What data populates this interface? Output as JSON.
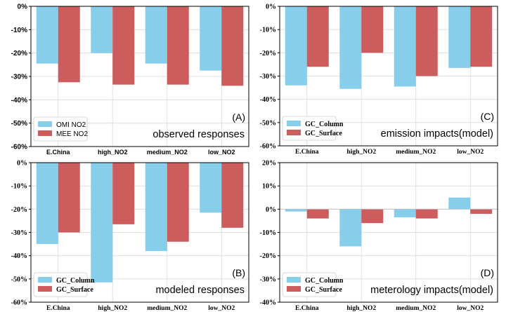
{
  "colors": {
    "blue": "#87ceeb",
    "red": "#cd5c5c",
    "grid": "#d9d9d9",
    "axis": "#000000"
  },
  "chart_data": [
    {
      "id": "A",
      "type": "bar",
      "panel_label": "(A)",
      "title": "observed responses",
      "categories": [
        "E.China",
        "high_NO2",
        "medium_NO2",
        "low_NO2"
      ],
      "series": [
        {
          "name": "OMI NO2",
          "values": [
            -24.5,
            -20,
            -24.5,
            -27.5
          ]
        },
        {
          "name": "MEE NO2",
          "values": [
            -32.5,
            -33.5,
            -33.5,
            -34
          ]
        }
      ],
      "ylim": [
        -60,
        0
      ],
      "yticks": [
        "0%",
        "-10%",
        "-20%",
        "-30%",
        "-40%",
        "-50%",
        "-60%"
      ],
      "grid": true,
      "legend": "bottom-left"
    },
    {
      "id": "C",
      "type": "bar",
      "panel_label": "(C)",
      "title": "emission impacts(model)",
      "categories": [
        "E.China",
        "high_NO2",
        "medium_NO2",
        "low_NO2"
      ],
      "series": [
        {
          "name": "GC_Column",
          "values": [
            -34,
            -35.5,
            -34.5,
            -26.5
          ]
        },
        {
          "name": "GC_Surface",
          "values": [
            -26,
            -20,
            -30,
            -26
          ]
        }
      ],
      "ylim": [
        -60,
        0
      ],
      "yticks": [
        "0%",
        "-10%",
        "-20%",
        "-30%",
        "-40%",
        "-50%",
        "-60%"
      ],
      "grid": true,
      "legend": "bottom-left"
    },
    {
      "id": "B",
      "type": "bar",
      "panel_label": "(B)",
      "title": "modeled responses",
      "categories": [
        "E.China",
        "high_NO2",
        "medium_NO2",
        "low_NO2"
      ],
      "series": [
        {
          "name": "GC_Column",
          "values": [
            -35,
            -51.5,
            -38,
            -21.5
          ]
        },
        {
          "name": "GC_Surface",
          "values": [
            -30,
            -26.5,
            -34,
            -28
          ]
        }
      ],
      "ylim": [
        -60,
        0
      ],
      "yticks": [
        "0%",
        "-10%",
        "-20%",
        "-30%",
        "-40%",
        "-50%",
        "-60%"
      ],
      "grid": true,
      "legend": "bottom-left"
    },
    {
      "id": "D",
      "type": "bar",
      "panel_label": "(D)",
      "title": "meterology impacts(model)",
      "categories": [
        "E.China",
        "high_NO2",
        "medium_NO2",
        "low_NO2"
      ],
      "series": [
        {
          "name": "GC_Column",
          "values": [
            -1,
            -16,
            -3.5,
            5
          ]
        },
        {
          "name": "GC_Surface",
          "values": [
            -4,
            -6,
            -4,
            -2
          ]
        }
      ],
      "ylim": [
        -40,
        20
      ],
      "yticks": [
        "20%",
        "10%",
        "0%",
        "-10%",
        "-20%",
        "-30%",
        "-40%"
      ],
      "grid": true,
      "legend": "bottom-left"
    }
  ]
}
